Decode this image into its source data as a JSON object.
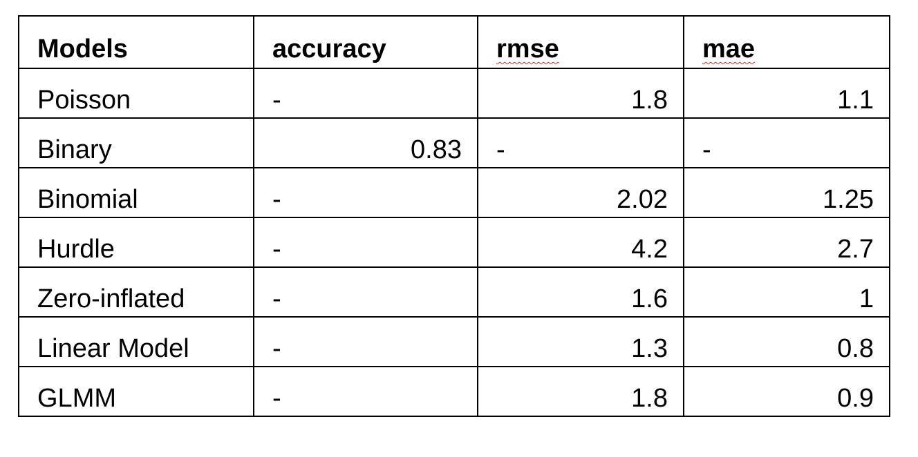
{
  "table": {
    "headers": {
      "model": "Models",
      "accuracy": "accuracy",
      "rmse": "rmse",
      "mae": "mae"
    },
    "rows": [
      {
        "model": "Poisson",
        "accuracy": "-",
        "rmse": "1.8",
        "mae": "1.1"
      },
      {
        "model": "Binary",
        "accuracy": "0.83",
        "rmse": "-",
        "mae": "-"
      },
      {
        "model": "Binomial",
        "accuracy": "-",
        "rmse": "2.02",
        "mae": "1.25"
      },
      {
        "model": "Hurdle",
        "accuracy": "-",
        "rmse": "4.2",
        "mae": "2.7"
      },
      {
        "model": "Zero-inflated",
        "accuracy": "-",
        "rmse": "1.6",
        "mae": "1"
      },
      {
        "model": "Linear Model",
        "accuracy": "-",
        "rmse": "1.3",
        "mae": "0.8"
      },
      {
        "model": "GLMM",
        "accuracy": "-",
        "rmse": "1.8",
        "mae": "0.9"
      }
    ]
  },
  "colors": {
    "border": "#000000",
    "text": "#000000",
    "spellcheck_underline": "#c0392b"
  }
}
